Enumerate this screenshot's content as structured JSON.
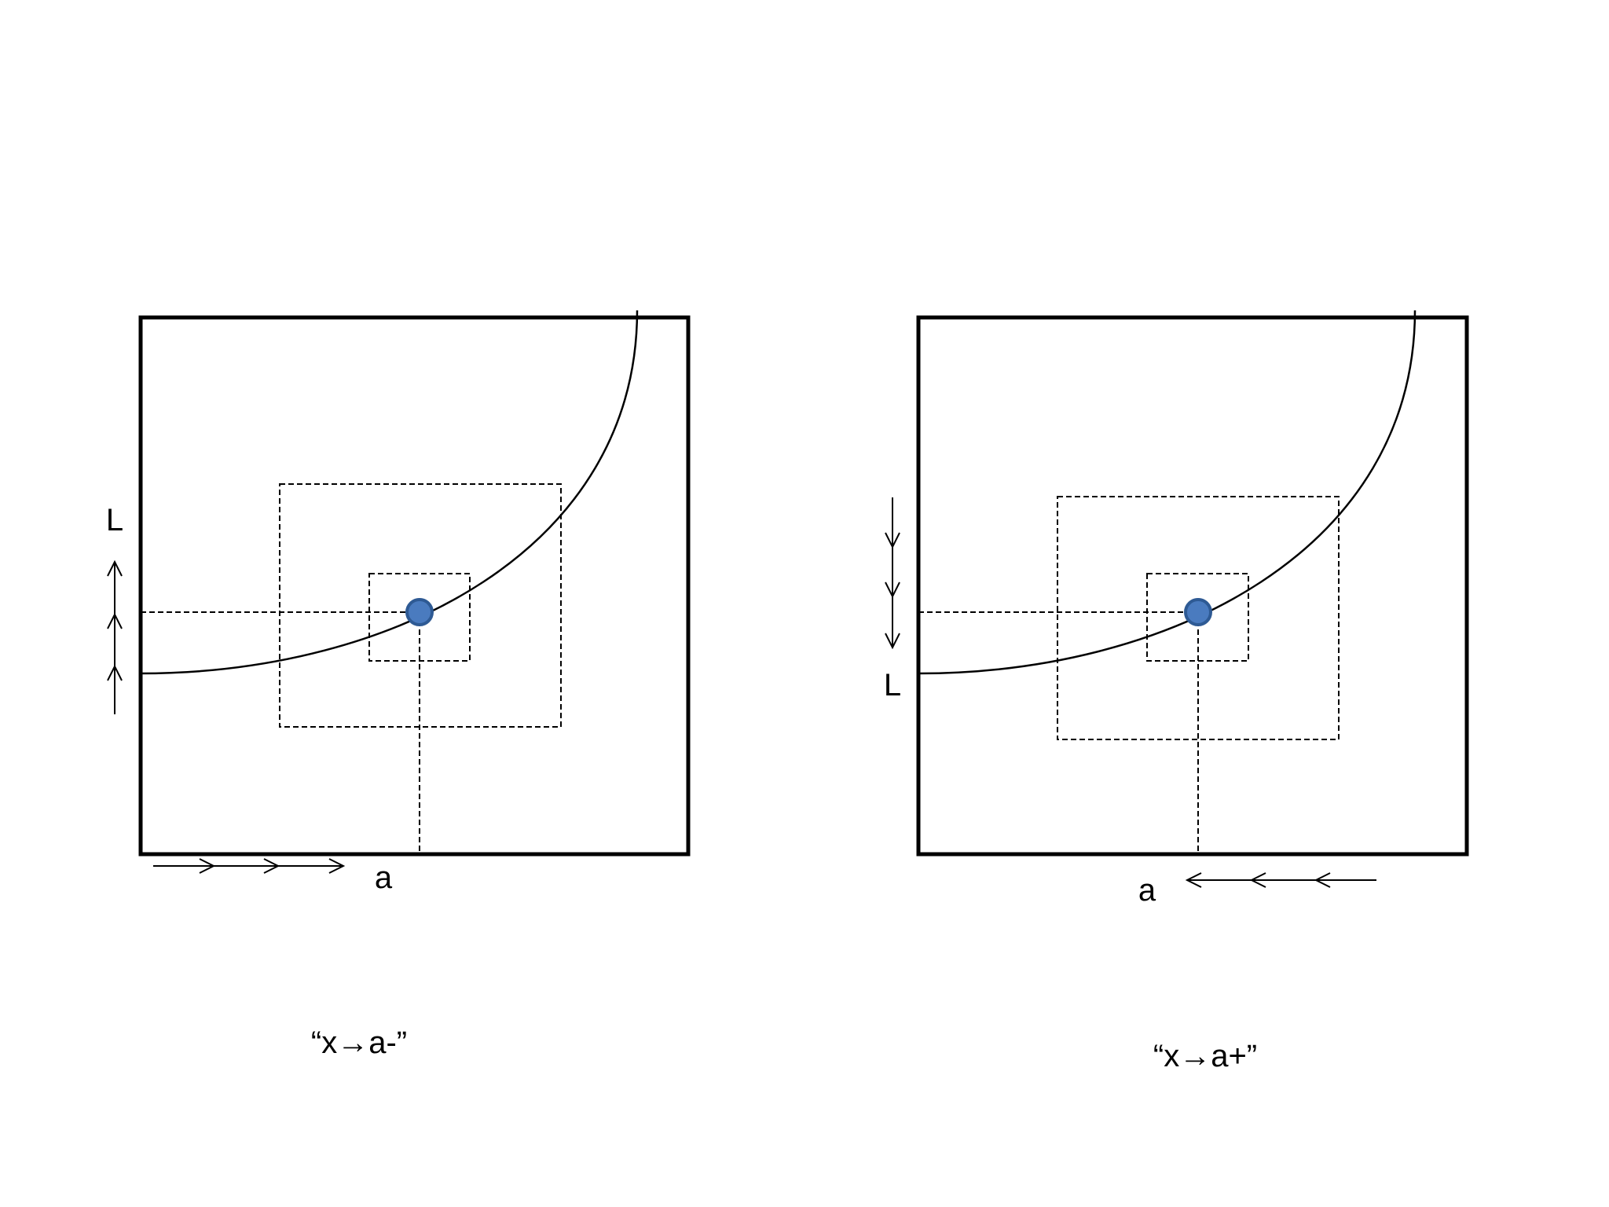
{
  "panels": [
    {
      "label_L": "L",
      "label_a": "a",
      "caption": "“x→a-”"
    },
    {
      "label_L": "L",
      "label_a": "a",
      "caption": "“x→a+”"
    }
  ]
}
